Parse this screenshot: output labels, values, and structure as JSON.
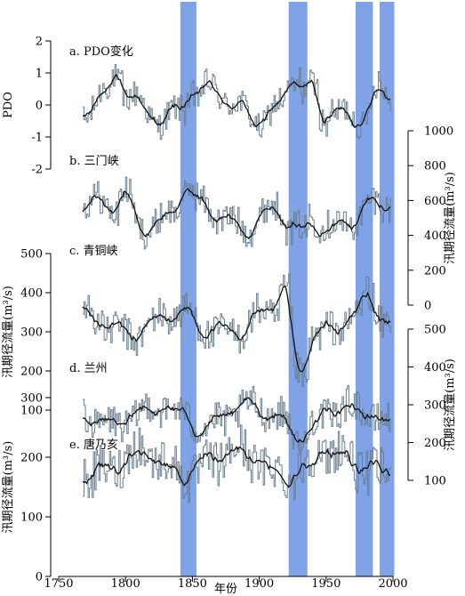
{
  "chart_data": {
    "type": "line",
    "xlabel": "年份",
    "x_ticks": [
      "1750",
      "1800",
      "1850",
      "1900",
      "1950",
      "2000"
    ],
    "xlim": [
      1750,
      2000
    ],
    "highlight_spans": [
      [
        1841,
        1853
      ],
      [
        1922,
        1936
      ],
      [
        1972,
        1985
      ],
      [
        1990,
        2001
      ]
    ],
    "highlight_color": "#7fa3e6",
    "annual_color": "#6a7f8f",
    "smooth_color": "#111111",
    "panels": [
      {
        "id": "a",
        "label": "a. PDO变化",
        "axis_side": "left",
        "ylabel": "PDO",
        "ylim": [
          -2,
          2
        ],
        "y_ticks": [
          "-2",
          "-1",
          "0",
          "1",
          "2"
        ],
        "mean": 0.0,
        "amp": 0.45,
        "noise": 0.45,
        "range": [
          -2.0,
          1.6
        ],
        "anomalies": [
          [
            1790,
            1797,
            0.5
          ],
          [
            1845,
            1850,
            0.4
          ],
          [
            1920,
            1930,
            0.5
          ],
          [
            1945,
            1950,
            -0.6
          ],
          [
            1982,
            1990,
            0.5
          ]
        ]
      },
      {
        "id": "b",
        "label": "b. 三门峡",
        "axis_side": "right",
        "ylabel": "汛期径流量(m³/s)",
        "ylim": [
          0,
          1000
        ],
        "y_ticks": [
          "0",
          "200",
          "400",
          "600",
          "800",
          "1000"
        ],
        "mean": 520,
        "amp": 70,
        "noise": 90,
        "range": [
          250,
          950
        ],
        "anomalies": [
          [
            1795,
            1805,
            120
          ],
          [
            1920,
            1936,
            -150
          ],
          [
            1840,
            1850,
            80
          ]
        ]
      },
      {
        "id": "c",
        "label": "c. 青铜峡",
        "axis_side": "left",
        "ylabel": "汛期径流量(m³/s)",
        "ylim": [
          100,
          500
        ],
        "y_ticks": [
          "100",
          "200",
          "300",
          "400",
          "500"
        ],
        "mean": 320,
        "amp": 30,
        "noise": 45,
        "range": [
          160,
          470
        ],
        "anomalies": [
          [
            1915,
            1922,
            60
          ],
          [
            1925,
            1936,
            -120
          ],
          [
            1978,
            1985,
            50
          ]
        ]
      },
      {
        "id": "d",
        "label": "d. 兰州",
        "axis_side": "right",
        "ylabel": "汛期径流量(m³/s)",
        "ylim": [
          100,
          500
        ],
        "y_ticks": [
          "100",
          "200",
          "300",
          "400",
          "500"
        ],
        "mean": 270,
        "amp": 25,
        "noise": 45,
        "range": [
          180,
          450
        ],
        "anomalies": [
          [
            1925,
            1936,
            -40
          ]
        ]
      },
      {
        "id": "e",
        "label": "e. 唐乃亥",
        "axis_side": "left",
        "ylabel": "汛期径流量(m³/s)",
        "ylim": [
          0,
          300
        ],
        "y_ticks": [
          "0",
          "100",
          "200",
          "300"
        ],
        "mean": 190,
        "amp": 20,
        "noise": 38,
        "range": [
          70,
          300
        ],
        "anomalies": []
      }
    ]
  }
}
